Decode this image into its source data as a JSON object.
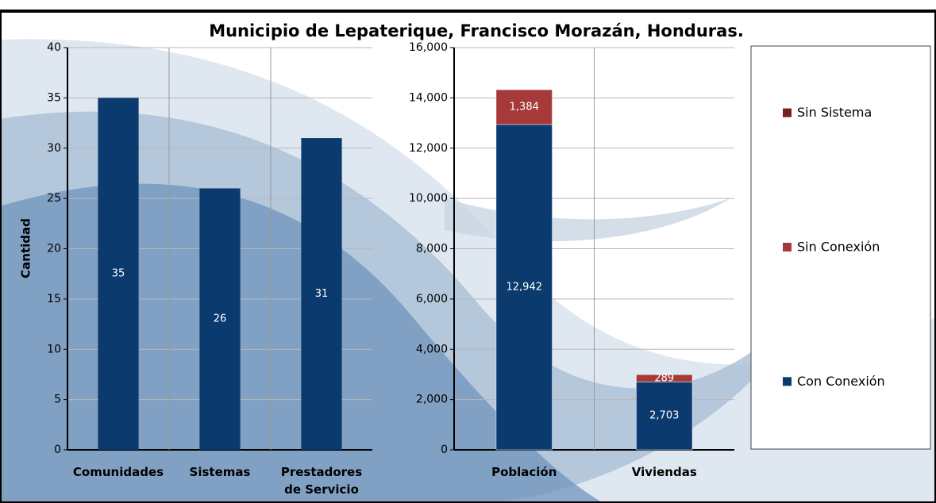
{
  "title": "Municipio de Lepaterique, Francisco Morazán, Honduras.",
  "chart_data": [
    {
      "type": "bar",
      "y_label": "Cantidad",
      "categories": [
        "Comunidades",
        "Sistemas",
        "Prestadores de Servicio"
      ],
      "values": [
        35,
        26,
        31
      ],
      "color": "#0b3a6e",
      "ylim": [
        0,
        40
      ],
      "yticks": [
        0,
        5,
        10,
        15,
        20,
        25,
        30,
        35,
        40
      ],
      "grid": true
    },
    {
      "type": "stacked_bar",
      "categories": [
        "Población",
        "Viviendas"
      ],
      "series": [
        {
          "name": "Con Conexión",
          "color": "#0b3a6e",
          "values": [
            12942,
            2703
          ],
          "value_labels": [
            "12,942",
            "2,703"
          ]
        },
        {
          "name": "Sin Conexión",
          "color": "#a63a3a",
          "values": [
            1384,
            289
          ],
          "value_labels": [
            "1,384",
            "289"
          ]
        },
        {
          "name": "Sin Sistema",
          "color": "#7a1f1f",
          "values": [
            0,
            0
          ]
        }
      ],
      "ylim": [
        0,
        16000
      ],
      "yticks": [
        0,
        {
          "value": 2000,
          "label": "2,000"
        },
        {
          "value": 4000,
          "label": "4,000"
        },
        {
          "value": 6000,
          "label": "6,000"
        },
        {
          "value": 8000,
          "label": "8,000"
        },
        {
          "value": 10000,
          "label": "10,000"
        },
        {
          "value": 12000,
          "label": "12,000"
        },
        {
          "value": 14000,
          "label": "14,000"
        },
        {
          "value": 16000,
          "label": "16,000"
        }
      ],
      "grid": true,
      "legend": "right"
    }
  ]
}
